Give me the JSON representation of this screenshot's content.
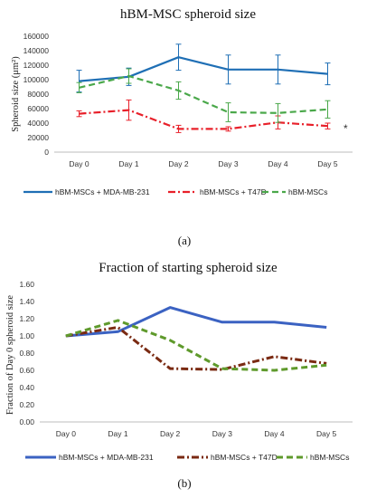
{
  "chart_data": [
    {
      "type": "line",
      "panel_label": "(a)",
      "title": "hBM-MSC spheroid size",
      "ylabel": "Spheroid size (μm²)",
      "ylim": [
        0,
        160000
      ],
      "yticks": [
        "0",
        "20000",
        "40000",
        "60000",
        "80000",
        "100000",
        "120000",
        "140000",
        "160000"
      ],
      "categories": [
        "Day 0",
        "Day 1",
        "Day 2",
        "Day 3",
        "Day 4",
        "Day 5"
      ],
      "annotation": "*",
      "series": [
        {
          "name": "hBM-MSCs + MDA-MB-231",
          "color": "#1f6fb5",
          "dash": "solid",
          "values": [
            98000,
            104000,
            131000,
            114000,
            114000,
            108000
          ],
          "errors": [
            15000,
            12000,
            18000,
            20000,
            20000,
            15000
          ]
        },
        {
          "name": "hBM-MSCs + T47D",
          "color": "#e8202a",
          "dash": "dashdot",
          "values": [
            53000,
            58000,
            32000,
            32000,
            41000,
            36000
          ],
          "errors": [
            4000,
            14000,
            5000,
            3000,
            9000,
            4000
          ]
        },
        {
          "name": "hBM-MSCs",
          "color": "#4aa84a",
          "dash": "dash",
          "values": [
            89000,
            105000,
            85000,
            55000,
            54000,
            59000
          ],
          "errors": [
            7000,
            10000,
            12000,
            13000,
            13000,
            12000
          ]
        }
      ],
      "legend_position": "bottom"
    },
    {
      "type": "line",
      "panel_label": "(b)",
      "title": "Fraction of starting spheroid size",
      "ylabel": "Fraction of Day 0 spheroid size",
      "ylim": [
        0,
        1.6
      ],
      "yticks": [
        "0.00",
        "0.20",
        "0.40",
        "0.60",
        "0.80",
        "1.00",
        "1.20",
        "1.40",
        "1.60"
      ],
      "categories": [
        "Day 0",
        "Day 1",
        "Day 2",
        "Day 3",
        "Day 4",
        "Day 5"
      ],
      "series": [
        {
          "name": "hBM-MSCs + MDA-MB-231",
          "color": "#3b62c2",
          "dash": "solid",
          "values": [
            1.0,
            1.05,
            1.33,
            1.16,
            1.16,
            1.1
          ]
        },
        {
          "name": "hBM-MSCs + T47D",
          "color": "#7a2a12",
          "dash": "dashdot",
          "values": [
            1.0,
            1.1,
            0.62,
            0.61,
            0.76,
            0.68
          ]
        },
        {
          "name": "hBM-MSCs",
          "color": "#5f9a2c",
          "dash": "dash",
          "values": [
            1.0,
            1.18,
            0.95,
            0.62,
            0.6,
            0.66
          ]
        }
      ],
      "legend_position": "bottom"
    }
  ]
}
